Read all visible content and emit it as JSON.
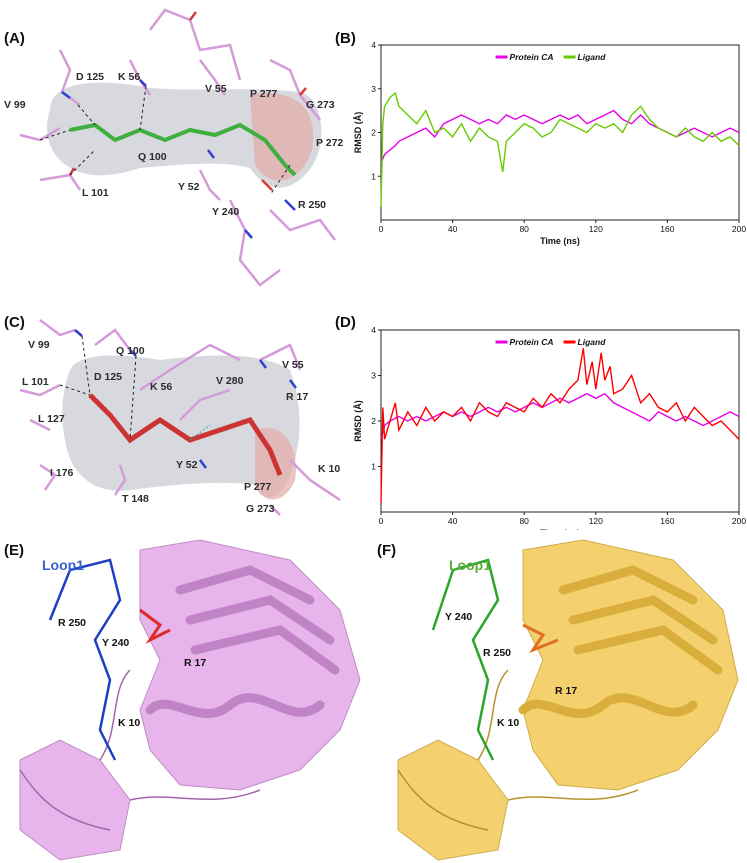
{
  "panels": {
    "A": {
      "label": "(A)",
      "residues": [
        "D 125",
        "K 56",
        "V 55",
        "P 277",
        "G 273",
        "V 99",
        "Q 100",
        "P 272",
        "L 101",
        "Y 52",
        "Y 240",
        "R 250"
      ]
    },
    "B": {
      "label": "(B)"
    },
    "C": {
      "label": "(C)",
      "residues": [
        "V 99",
        "Q 100",
        "V 55",
        "L 101",
        "D 125",
        "K 56",
        "V 280",
        "R 17",
        "L 127",
        "Y 52",
        "I 176",
        "T 148",
        "P 277",
        "K 10",
        "G 273"
      ]
    },
    "D": {
      "label": "(D)"
    },
    "E": {
      "label": "(E)",
      "loop_label": "Loop1",
      "residues": [
        "R 250",
        "Y 240",
        "R 17",
        "K 10"
      ]
    },
    "F": {
      "label": "(F)",
      "loop_label": "Loop1",
      "residues": [
        "Y 240",
        "R 250",
        "K 10",
        "R 17"
      ]
    }
  },
  "colors": {
    "protein": "#e600e6",
    "ligand_B": "#66cc00",
    "ligand_D": "#ff0000",
    "loop_E": "#1f3fc4",
    "loop_F": "#2aa52a",
    "protein_E": "#e3a8e8",
    "protein_F": "#f3cd5f"
  },
  "chart_data": [
    {
      "panel": "B",
      "type": "line",
      "xlabel": "Time (ns)",
      "ylabel": "RMSD (Å)",
      "xlim": [
        0,
        200
      ],
      "ylim": [
        0,
        4
      ],
      "xticks": [
        0,
        40,
        80,
        120,
        160,
        200
      ],
      "yticks": [
        1,
        2,
        3,
        4
      ],
      "legend_position": "top",
      "series": [
        {
          "name": "Protein CA",
          "x": [
            0,
            2,
            5,
            8,
            10,
            15,
            20,
            25,
            30,
            35,
            40,
            45,
            50,
            55,
            60,
            65,
            70,
            75,
            80,
            85,
            90,
            95,
            100,
            105,
            110,
            115,
            120,
            125,
            130,
            135,
            140,
            145,
            150,
            155,
            160,
            165,
            170,
            175,
            180,
            185,
            190,
            195,
            200
          ],
          "y": [
            1.3,
            1.5,
            1.6,
            1.7,
            1.8,
            1.9,
            2.0,
            2.1,
            1.9,
            2.2,
            2.3,
            2.4,
            2.3,
            2.2,
            2.3,
            2.2,
            2.4,
            2.3,
            2.4,
            2.3,
            2.2,
            2.3,
            2.4,
            2.3,
            2.4,
            2.2,
            2.3,
            2.4,
            2.5,
            2.3,
            2.2,
            2.4,
            2.2,
            2.1,
            2.0,
            1.9,
            2.0,
            2.1,
            2.0,
            1.9,
            2.0,
            2.1,
            2.0
          ]
        },
        {
          "name": "Ligand",
          "x": [
            0,
            1,
            2,
            5,
            8,
            10,
            15,
            20,
            25,
            30,
            35,
            40,
            45,
            50,
            55,
            60,
            65,
            68,
            70,
            75,
            80,
            85,
            90,
            95,
            100,
            105,
            110,
            115,
            120,
            125,
            130,
            135,
            140,
            145,
            150,
            155,
            160,
            165,
            170,
            175,
            180,
            185,
            190,
            195,
            200
          ],
          "y": [
            0.3,
            2.2,
            2.6,
            2.8,
            2.9,
            2.6,
            2.4,
            2.2,
            2.5,
            2.0,
            2.1,
            1.9,
            2.2,
            1.8,
            2.1,
            1.9,
            1.8,
            1.1,
            1.8,
            2.0,
            2.2,
            2.1,
            1.9,
            2.0,
            2.3,
            2.2,
            2.1,
            2.0,
            2.2,
            2.1,
            2.2,
            2.0,
            2.4,
            2.6,
            2.3,
            2.1,
            2.0,
            1.9,
            2.1,
            1.9,
            1.8,
            2.0,
            1.8,
            1.9,
            1.7
          ]
        }
      ]
    },
    {
      "panel": "D",
      "type": "line",
      "xlabel": "Time (ns)",
      "ylabel": "RMSD (Å)",
      "xlim": [
        0,
        200
      ],
      "ylim": [
        0,
        4
      ],
      "xticks": [
        0,
        40,
        80,
        120,
        160,
        200
      ],
      "yticks": [
        1,
        2,
        3,
        4
      ],
      "legend_position": "top",
      "series": [
        {
          "name": "Protein CA",
          "x": [
            0,
            2,
            5,
            10,
            15,
            20,
            25,
            30,
            35,
            40,
            45,
            50,
            55,
            60,
            65,
            70,
            75,
            80,
            85,
            90,
            95,
            100,
            105,
            110,
            115,
            120,
            125,
            130,
            135,
            140,
            145,
            150,
            155,
            160,
            165,
            170,
            175,
            180,
            185,
            190,
            195,
            200
          ],
          "y": [
            1.6,
            1.9,
            2.0,
            2.1,
            2.0,
            2.1,
            2.0,
            2.1,
            2.2,
            2.1,
            2.2,
            2.1,
            2.2,
            2.3,
            2.2,
            2.3,
            2.2,
            2.3,
            2.4,
            2.3,
            2.4,
            2.5,
            2.4,
            2.5,
            2.6,
            2.5,
            2.6,
            2.4,
            2.3,
            2.2,
            2.1,
            2.0,
            2.2,
            2.1,
            2.0,
            2.1,
            2.0,
            1.9,
            2.0,
            2.1,
            2.2,
            2.1
          ]
        },
        {
          "name": "Ligand",
          "x": [
            0,
            1,
            2,
            5,
            8,
            10,
            15,
            20,
            25,
            30,
            35,
            40,
            45,
            50,
            55,
            60,
            65,
            70,
            75,
            80,
            85,
            90,
            95,
            100,
            105,
            110,
            113,
            115,
            118,
            120,
            123,
            125,
            128,
            130,
            135,
            140,
            145,
            150,
            155,
            160,
            165,
            170,
            175,
            180,
            185,
            190,
            195,
            200
          ],
          "y": [
            0.2,
            2.3,
            1.6,
            2.0,
            2.4,
            1.8,
            2.2,
            1.9,
            2.3,
            2.0,
            2.2,
            2.1,
            2.3,
            2.0,
            2.4,
            2.2,
            2.1,
            2.4,
            2.3,
            2.2,
            2.5,
            2.3,
            2.6,
            2.4,
            2.7,
            2.9,
            3.6,
            2.8,
            3.3,
            2.7,
            3.5,
            2.9,
            3.2,
            2.6,
            2.7,
            3.0,
            2.4,
            2.6,
            2.3,
            2.2,
            2.4,
            2.0,
            2.3,
            2.1,
            1.9,
            2.0,
            1.8,
            1.6
          ]
        }
      ]
    }
  ]
}
